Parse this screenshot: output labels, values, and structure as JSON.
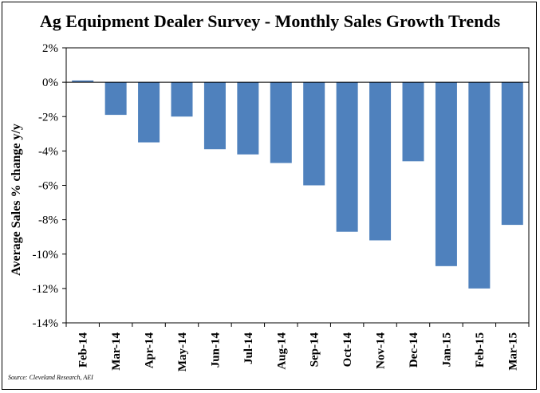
{
  "chart_data": {
    "type": "bar",
    "title": "Ag Equipment Dealer Survey - Monthly Sales Growth Trends",
    "xlabel": "",
    "ylabel": "Average Sales % change y/y",
    "ylim": [
      -14,
      2
    ],
    "yticks": [
      2,
      0,
      -2,
      -4,
      -6,
      -8,
      -10,
      -12,
      -14
    ],
    "ytick_labels": [
      "2%",
      "0%",
      "-2%",
      "-4%",
      "-6%",
      "-8%",
      "-10%",
      "-12%",
      "-14%"
    ],
    "categories": [
      "Feb-14",
      "Mar-14",
      "Apr-14",
      "May-14",
      "Jun-14",
      "Jul-14",
      "Aug-14",
      "Sep-14",
      "Oct-14",
      "Nov-14",
      "Dec-14",
      "Jan-15",
      "Feb-15",
      "Mar-15"
    ],
    "values": [
      0.1,
      -1.9,
      -3.5,
      -2.0,
      -3.9,
      -4.2,
      -4.7,
      -6.0,
      -8.7,
      -9.2,
      -4.6,
      -10.7,
      -12.0,
      -8.3
    ],
    "bar_color": "#4f81bd",
    "grid": false,
    "legend": "none"
  },
  "source_note": "Source: Cleveland Research, AEI"
}
